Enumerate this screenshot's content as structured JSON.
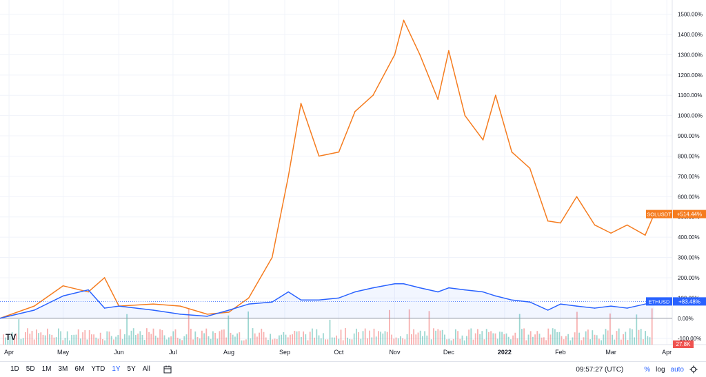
{
  "chart_data": {
    "type": "line",
    "title": "",
    "xlabel": "",
    "ylabel": "",
    "ylim": [
      -130,
      1570
    ],
    "x_tick_labels": [
      "Apr",
      "May",
      "Jun",
      "Jul",
      "Aug",
      "Sep",
      "Oct",
      "Nov",
      "Dec",
      "2022",
      "Feb",
      "Mar",
      "Apr"
    ],
    "y_tick_labels": [
      "1500.00%",
      "1400.00%",
      "1300.00%",
      "1200.00%",
      "1100.00%",
      "1000.00%",
      "900.00%",
      "800.00%",
      "700.00%",
      "600.00%",
      "500.00%",
      "400.00%",
      "300.00%",
      "200.00%",
      "100.00%",
      "0.00%",
      "-100.00%"
    ],
    "y_ticks": [
      1500,
      1400,
      1300,
      1200,
      1100,
      1000,
      900,
      800,
      700,
      600,
      500,
      400,
      300,
      200,
      100,
      0,
      -100
    ],
    "x_dates": [
      "2021-03-27",
      "2021-04-15",
      "2021-05-01",
      "2021-05-15",
      "2021-05-24",
      "2021-06-01",
      "2021-06-20",
      "2021-07-05",
      "2021-07-20",
      "2021-08-01",
      "2021-08-12",
      "2021-08-25",
      "2021-09-03",
      "2021-09-10",
      "2021-09-20",
      "2021-10-01",
      "2021-10-10",
      "2021-10-20",
      "2021-11-01",
      "2021-11-06",
      "2021-11-15",
      "2021-11-25",
      "2021-12-01",
      "2021-12-10",
      "2021-12-20",
      "2021-12-27",
      "2022-01-05",
      "2022-01-15",
      "2022-01-25",
      "2022-02-01",
      "2022-02-10",
      "2022-02-20",
      "2022-03-01",
      "2022-03-10",
      "2022-03-20",
      "2022-03-25"
    ],
    "series": [
      {
        "name": "SOLUSDT",
        "color": "#f57c1f",
        "last_label": "+514.44%",
        "values": [
          0,
          60,
          160,
          130,
          200,
          60,
          70,
          60,
          20,
          30,
          100,
          300,
          700,
          1060,
          800,
          820,
          1020,
          1100,
          1300,
          1470,
          1300,
          1080,
          1320,
          1000,
          880,
          1100,
          820,
          740,
          480,
          470,
          600,
          460,
          420,
          460,
          410,
          514
        ]
      },
      {
        "name": "ETHUSD",
        "color": "#2962ff",
        "last_label": "+83.48%",
        "values": [
          0,
          40,
          110,
          140,
          50,
          60,
          40,
          20,
          10,
          40,
          70,
          80,
          130,
          90,
          90,
          100,
          130,
          150,
          170,
          170,
          150,
          130,
          150,
          140,
          130,
          110,
          90,
          80,
          40,
          70,
          60,
          50,
          60,
          50,
          70,
          83
        ]
      }
    ],
    "volume_badge": "27.8K",
    "legend": "none",
    "grid": true
  },
  "toolbar": {
    "ranges": [
      "1D",
      "5D",
      "1M",
      "3M",
      "6M",
      "YTD",
      "1Y",
      "5Y",
      "All"
    ],
    "active_range": "1Y",
    "clock": "09:57:27 (UTC)",
    "percent_label": "%",
    "log_label": "log",
    "auto_label": "auto"
  },
  "logo_text": "TV"
}
